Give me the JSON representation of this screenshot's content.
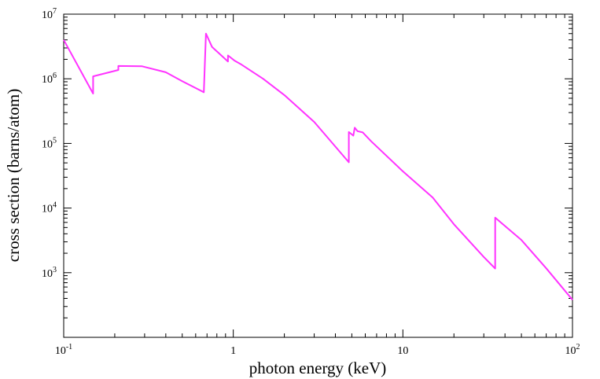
{
  "chart_data": {
    "type": "line",
    "title": "",
    "xlabel": "photon energy (keV)",
    "ylabel": "cross section (barns/atom)",
    "xscale": "log",
    "yscale": "log",
    "xlim": [
      0.1,
      100
    ],
    "ylim": [
      100,
      10000000
    ],
    "grid": false,
    "legend": "none",
    "x_tick_labels": [
      {
        "value": 0.1,
        "base": "10",
        "exp": "-1"
      },
      {
        "value": 1,
        "text": "1"
      },
      {
        "value": 10,
        "text": "10"
      },
      {
        "value": 100,
        "base": "10",
        "exp": "2"
      }
    ],
    "y_tick_labels": [
      {
        "value": 1000,
        "base": "10",
        "exp": "3"
      },
      {
        "value": 10000,
        "base": "10",
        "exp": "4"
      },
      {
        "value": 100000,
        "base": "10",
        "exp": "5"
      },
      {
        "value": 1000000,
        "base": "10",
        "exp": "6"
      },
      {
        "value": 10000000,
        "base": "10",
        "exp": "7"
      }
    ],
    "series": [
      {
        "color": "#ff33ff",
        "points": [
          [
            0.1,
            4000000
          ],
          [
            0.149,
            590000
          ],
          [
            0.149,
            1090000
          ],
          [
            0.21,
            1370000
          ],
          [
            0.21,
            1580000
          ],
          [
            0.29,
            1560000
          ],
          [
            0.4,
            1260000
          ],
          [
            0.5,
            920000
          ],
          [
            0.67,
            620000
          ],
          [
            0.69,
            5000000
          ],
          [
            0.75,
            3100000
          ],
          [
            0.93,
            1850000
          ],
          [
            0.93,
            2300000
          ],
          [
            1.02,
            1900000
          ],
          [
            1.12,
            1650000
          ],
          [
            1.5,
            1000000
          ],
          [
            2.0,
            560000
          ],
          [
            3.0,
            215000
          ],
          [
            4.8,
            51000
          ],
          [
            4.8,
            150000
          ],
          [
            5.1,
            132000
          ],
          [
            5.2,
            175000
          ],
          [
            5.4,
            155000
          ],
          [
            5.8,
            148000
          ],
          [
            6.5,
            108000
          ],
          [
            10.0,
            37000
          ],
          [
            15.0,
            14500
          ],
          [
            20.0,
            5600
          ],
          [
            30.0,
            1750
          ],
          [
            35.0,
            1160
          ],
          [
            35.0,
            7100
          ],
          [
            50.0,
            3200
          ],
          [
            70.0,
            1170
          ],
          [
            100.0,
            380
          ]
        ]
      }
    ]
  }
}
